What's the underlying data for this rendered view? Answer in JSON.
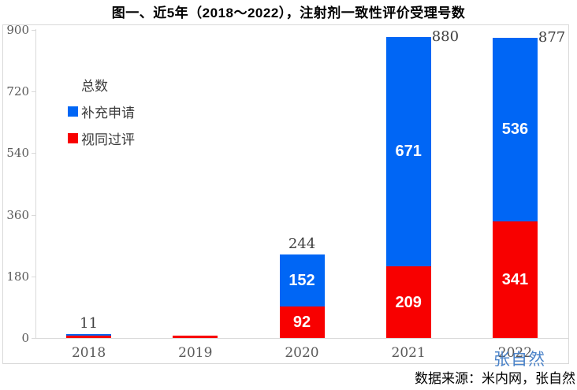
{
  "title": "图一、近5年（2018～2022），注射剂一致性评价受理号数",
  "legend": {
    "items": [
      {
        "label": "总数",
        "swatch": "none"
      },
      {
        "label": "补充申请",
        "swatch": "#0066f5"
      },
      {
        "label": "视同过评",
        "swatch": "#f80000"
      }
    ]
  },
  "watermark": "张自然",
  "source_note": "数据来源：米内网，张自然",
  "colors": {
    "bar_blue": "#0066f5",
    "bar_red": "#f80000",
    "axis": "#d9d9d9",
    "tick_text": "#595959",
    "total_text": "#3f3f3f",
    "watermark_blue": "#3e7ac4",
    "title_text": "#000000"
  },
  "chart_data": {
    "type": "bar",
    "stacked": true,
    "title": "图一、近5年（2018～2022），注射剂一致性评价受理号数",
    "categories": [
      "2018",
      "2019",
      "2020",
      "2021",
      "2022"
    ],
    "series": [
      {
        "name": "视同过评",
        "color": "#f80000",
        "values": [
          8,
          8,
          92,
          209,
          341
        ],
        "data_labels": [
          "",
          "",
          "92",
          "209",
          "341"
        ]
      },
      {
        "name": "补充申请",
        "color": "#0066f5",
        "values": [
          3,
          0,
          152,
          671,
          536
        ],
        "data_labels": [
          "",
          "",
          "152",
          "671",
          "536"
        ]
      }
    ],
    "total_labels": [
      "11",
      "",
      "244",
      "880",
      "877"
    ],
    "totals": [
      11,
      8,
      244,
      880,
      877
    ],
    "yticks": [
      0,
      180,
      360,
      540,
      720,
      900
    ],
    "ylim": [
      0,
      900
    ],
    "grid": false,
    "legend_position": "upper-left",
    "legend_entries": [
      "总数",
      "补充申请",
      "视同过评"
    ]
  }
}
